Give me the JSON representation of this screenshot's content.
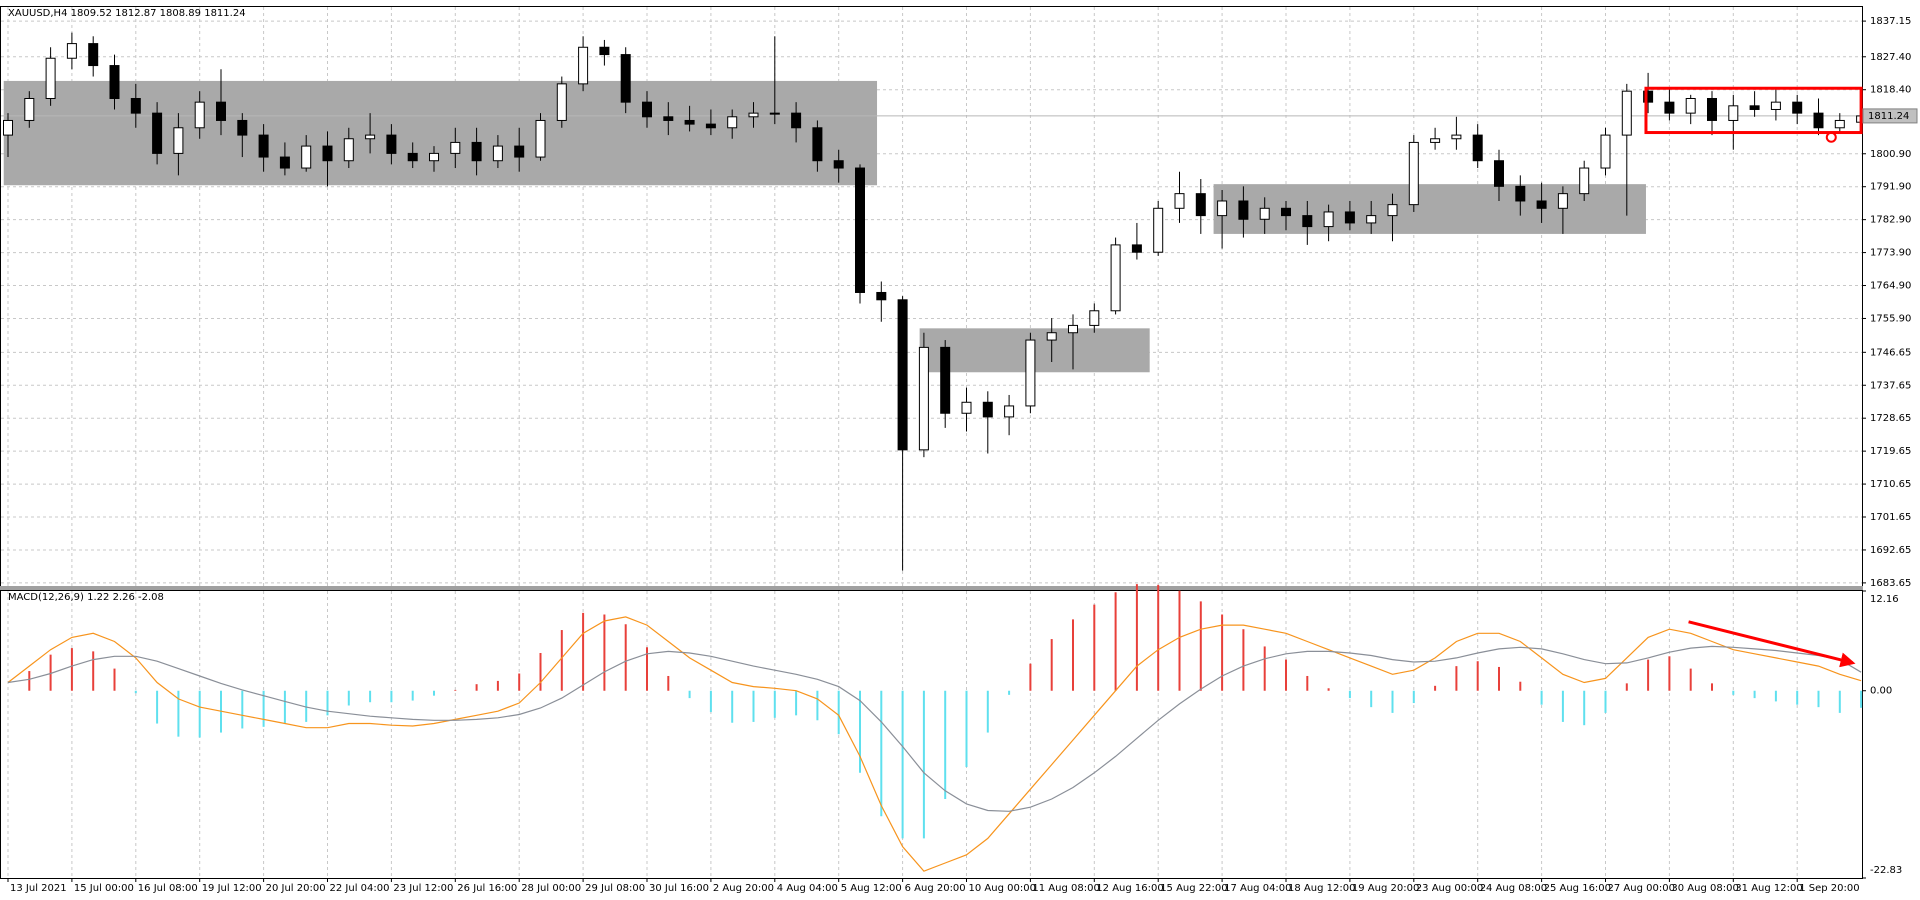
{
  "chart_data": [
    {
      "type": "candlestick",
      "title": "XAUUSD,H4  1809.52 1812.87 1808.89 1811.24",
      "categories": [
        "13 Jul 2021",
        null,
        null,
        "15 Jul 00:00",
        null,
        null,
        "16 Jul 08:00",
        null,
        null,
        "19 Jul 12:00",
        null,
        null,
        "20 Jul 20:00",
        null,
        null,
        "22 Jul 04:00",
        null,
        null,
        "23 Jul 12:00",
        null,
        null,
        "26 Jul 16:00",
        null,
        null,
        "28 Jul 00:00",
        null,
        null,
        "29 Jul 08:00",
        null,
        null,
        "30 Jul 16:00",
        null,
        null,
        "2 Aug 20:00",
        null,
        null,
        "4 Aug 04:00",
        null,
        null,
        "5 Aug 12:00",
        null,
        null,
        "6 Aug 20:00",
        null,
        null,
        "10 Aug 00:00",
        null,
        null,
        "11 Aug 08:00",
        null,
        null,
        "12 Aug 16:00",
        null,
        null,
        "15 Aug 22:00",
        null,
        null,
        "17 Aug 04:00",
        null,
        null,
        "18 Aug 12:00",
        null,
        null,
        "19 Aug 20:00",
        null,
        null,
        "23 Aug 00:00",
        null,
        null,
        "24 Aug 08:00",
        null,
        null,
        "25 Aug 16:00",
        null,
        null,
        "27 Aug 00:00",
        null,
        null,
        "30 Aug 08:00",
        null,
        null,
        "31 Aug 12:00",
        null,
        null,
        "1 Sep 20:00",
        null,
        null,
        null
      ],
      "ohlc": [
        [
          1806,
          1812,
          1800,
          1810
        ],
        [
          1810,
          1818,
          1808,
          1816
        ],
        [
          1816,
          1830,
          1814,
          1827
        ],
        [
          1827,
          1834,
          1824,
          1831
        ],
        [
          1831,
          1833,
          1822,
          1825
        ],
        [
          1825,
          1828,
          1813,
          1816
        ],
        [
          1816,
          1820,
          1808,
          1812
        ],
        [
          1812,
          1815,
          1798,
          1801
        ],
        [
          1801,
          1812,
          1795,
          1808
        ],
        [
          1808,
          1818,
          1805,
          1815
        ],
        [
          1815,
          1824,
          1806,
          1810
        ],
        [
          1810,
          1812,
          1800,
          1806
        ],
        [
          1806,
          1809,
          1796,
          1800
        ],
        [
          1800,
          1804,
          1795,
          1797
        ],
        [
          1797,
          1806,
          1796,
          1803
        ],
        [
          1803,
          1807,
          1792,
          1799
        ],
        [
          1799,
          1808,
          1797,
          1805
        ],
        [
          1805,
          1812,
          1801,
          1806
        ],
        [
          1806,
          1809,
          1798,
          1801
        ],
        [
          1801,
          1804,
          1797,
          1799
        ],
        [
          1799,
          1803,
          1796,
          1801
        ],
        [
          1801,
          1808,
          1797,
          1804
        ],
        [
          1804,
          1808,
          1795,
          1799
        ],
        [
          1799,
          1806,
          1797,
          1803
        ],
        [
          1803,
          1808,
          1796,
          1800
        ],
        [
          1800,
          1812,
          1799,
          1810
        ],
        [
          1810,
          1822,
          1808,
          1820
        ],
        [
          1820,
          1833,
          1818,
          1830
        ],
        [
          1830,
          1832,
          1825,
          1828
        ],
        [
          1828,
          1830,
          1812,
          1815
        ],
        [
          1815,
          1818,
          1808,
          1811
        ],
        [
          1811,
          1815,
          1806,
          1810
        ],
        [
          1810,
          1814,
          1807,
          1809
        ],
        [
          1809,
          1813,
          1806,
          1808
        ],
        [
          1808,
          1813,
          1805,
          1811
        ],
        [
          1811,
          1815,
          1808,
          1812
        ],
        [
          1812,
          1833,
          1809,
          1812
        ],
        [
          1812,
          1815,
          1804,
          1808
        ],
        [
          1808,
          1810,
          1796,
          1799
        ],
        [
          1799,
          1802,
          1793,
          1797
        ],
        [
          1797,
          1798,
          1760,
          1763
        ],
        [
          1763,
          1766,
          1755,
          1761
        ],
        [
          1761,
          1762,
          1687,
          1720
        ],
        [
          1720,
          1752,
          1718,
          1748
        ],
        [
          1748,
          1750,
          1726,
          1730
        ],
        [
          1730,
          1737,
          1725,
          1733
        ],
        [
          1733,
          1736,
          1719,
          1729
        ],
        [
          1729,
          1735,
          1724,
          1732
        ],
        [
          1732,
          1752,
          1730,
          1750
        ],
        [
          1750,
          1756,
          1744,
          1752
        ],
        [
          1752,
          1757,
          1742,
          1754
        ],
        [
          1754,
          1760,
          1752,
          1758
        ],
        [
          1758,
          1778,
          1757,
          1776
        ],
        [
          1776,
          1782,
          1772,
          1774
        ],
        [
          1774,
          1788,
          1773,
          1786
        ],
        [
          1786,
          1796,
          1782,
          1790
        ],
        [
          1790,
          1794,
          1779,
          1784
        ],
        [
          1784,
          1791,
          1775,
          1788
        ],
        [
          1788,
          1792,
          1778,
          1783
        ],
        [
          1783,
          1789,
          1779,
          1786
        ],
        [
          1786,
          1788,
          1780,
          1784
        ],
        [
          1784,
          1788,
          1776,
          1781
        ],
        [
          1781,
          1787,
          1777,
          1785
        ],
        [
          1785,
          1788,
          1780,
          1782
        ],
        [
          1782,
          1788,
          1779,
          1784
        ],
        [
          1784,
          1790,
          1777,
          1787
        ],
        [
          1787,
          1806,
          1785,
          1804
        ],
        [
          1804,
          1808,
          1802,
          1805
        ],
        [
          1805,
          1811,
          1802,
          1806
        ],
        [
          1806,
          1809,
          1797,
          1799
        ],
        [
          1799,
          1802,
          1788,
          1792
        ],
        [
          1792,
          1795,
          1784,
          1788
        ],
        [
          1788,
          1793,
          1782,
          1786
        ],
        [
          1786,
          1792,
          1779,
          1790
        ],
        [
          1790,
          1799,
          1788,
          1797
        ],
        [
          1797,
          1808,
          1795,
          1806
        ],
        [
          1806,
          1820,
          1784,
          1818
        ],
        [
          1818,
          1823,
          1812,
          1815
        ],
        [
          1815,
          1819,
          1810,
          1812
        ],
        [
          1812,
          1817,
          1809,
          1816
        ],
        [
          1816,
          1818,
          1806,
          1810
        ],
        [
          1810,
          1817,
          1802,
          1814
        ],
        [
          1814,
          1818,
          1811,
          1813
        ],
        [
          1813,
          1819,
          1810,
          1815
        ],
        [
          1815,
          1817,
          1809,
          1812
        ],
        [
          1812,
          1816,
          1806,
          1808
        ],
        [
          1808,
          1812,
          1807,
          1810
        ],
        [
          1809.52,
          1812.87,
          1808.89,
          1811.24
        ]
      ],
      "up_color": "#ffffff",
      "down_color": "#000000",
      "ylim": [
        1682.8,
        1841
      ],
      "yticks": [
        1837.15,
        {
          "value": 1827.4,
          "label": "1827.40"
        },
        {
          "value": 1818.4,
          "label": "1818.40"
        },
        {
          "value": 1800.9,
          "label": "1800.90"
        },
        {
          "value": 1791.9,
          "label": "1791.90"
        },
        {
          "value": 1782.9,
          "label": "1782.90"
        },
        {
          "value": 1773.9,
          "label": "1773.90"
        },
        {
          "value": 1764.9,
          "label": "1764.90"
        },
        {
          "value": 1755.9,
          "label": "1755.90"
        },
        1746.65,
        1737.65,
        1728.65,
        1719.65,
        1710.65,
        1701.65,
        1692.65,
        1683.65
      ],
      "grid": true,
      "zones": [
        {
          "start": -0.2,
          "end": 40.8,
          "low": 1792.3,
          "high": 1820.8,
          "color": "#a9a9a9"
        },
        {
          "start": 42.8,
          "end": 53.6,
          "low": 1741.2,
          "high": 1753.2,
          "color": "#a9a9a9"
        },
        {
          "start": 56.6,
          "end": 76.9,
          "low": 1779.0,
          "high": 1792.6,
          "color": "#a9a9a9"
        }
      ],
      "highlight": {
        "start": 76.9,
        "end": 87,
        "low": 1806.7,
        "high": 1818.8,
        "color": "#ff0000"
      },
      "marker": {
        "x": 85.6,
        "y": 1805.4,
        "color": "#ff0000"
      }
    },
    {
      "type": "macd",
      "title": "MACD(12,26,9) 1.22 2.26 -2.08",
      "histogram": {
        "pos_color": "#e8403a",
        "neg_color": "#5fe0ee",
        "values": [
          0,
          2.4,
          4.4,
          5.2,
          4.8,
          2.7,
          -0.3,
          -4,
          -5.6,
          -5.7,
          -5.1,
          -4.6,
          -4.4,
          -4,
          -3.8,
          -3,
          -1.8,
          -1.4,
          -1.4,
          -1.2,
          -0.6,
          0.1,
          0.8,
          1.2,
          2.1,
          4.6,
          7.4,
          9.5,
          9.3,
          8.1,
          5.3,
          1.8,
          -0.9,
          -2.6,
          -3.9,
          -3.8,
          -3.3,
          -3,
          -3.6,
          -5.3,
          -10,
          -15.3,
          -18,
          -18,
          -13.2,
          -9.3,
          -5.1,
          -0.5,
          3.3,
          6.3,
          8.7,
          10.5,
          12,
          13,
          12.9,
          12.2,
          10.9,
          9.3,
          7.5,
          5.4,
          3.8,
          1.8,
          0.3,
          -0.9,
          -2,
          -2.7,
          -1.5,
          0.6,
          3,
          3.6,
          2.9,
          1.1,
          -1.7,
          -3.8,
          -4.2,
          -2.7,
          0.9,
          3.8,
          4.2,
          2.7,
          0.9,
          -0.5,
          -0.9,
          -1.3,
          -1.7,
          -2,
          -2.7,
          -2.08
        ]
      },
      "series": [
        {
          "color": "#f7941d",
          "values": [
            1,
            3,
            5,
            6.5,
            7,
            6,
            4,
            1,
            -1,
            -2,
            -2.5,
            -3,
            -3.5,
            -4,
            -4.5,
            -4.5,
            -4,
            -4,
            -4.2,
            -4.3,
            -4,
            -3.5,
            -3,
            -2.5,
            -1.5,
            1,
            4,
            7,
            8.5,
            9,
            8,
            6,
            4,
            2.5,
            1,
            0.5,
            0.3,
            0,
            -1,
            -3,
            -8,
            -14,
            -19,
            -22,
            -21,
            -20,
            -18,
            -15,
            -12,
            -9,
            -6,
            -3,
            0,
            3,
            5,
            6.5,
            7.5,
            8,
            8,
            7.5,
            7,
            6,
            5,
            4,
            3,
            2,
            2.5,
            4,
            6,
            7,
            7,
            6,
            4,
            2,
            1,
            1.5,
            4,
            6.5,
            7.5,
            7,
            6,
            5,
            4.5,
            4,
            3.5,
            3,
            2,
            1.22
          ]
        },
        {
          "color": "#8a8f98",
          "values": [
            1,
            1.4,
            2.1,
            3,
            3.8,
            4.2,
            4.2,
            3.6,
            2.7,
            1.8,
            0.9,
            0.1,
            -0.6,
            -1.3,
            -2,
            -2.5,
            -2.8,
            -3.1,
            -3.3,
            -3.5,
            -3.6,
            -3.6,
            -3.5,
            -3.3,
            -2.9,
            -2.1,
            -0.9,
            0.7,
            2.3,
            3.6,
            4.5,
            4.8,
            4.6,
            4.2,
            3.6,
            3,
            2.5,
            2,
            1.4,
            0.5,
            -1.2,
            -3.8,
            -6.8,
            -10,
            -12.2,
            -13.8,
            -14.6,
            -14.7,
            -14.2,
            -13.2,
            -11.8,
            -10,
            -8,
            -5.8,
            -3.6,
            -1.6,
            0.2,
            1.8,
            3,
            3.9,
            4.5,
            4.8,
            4.8,
            4.6,
            4.3,
            3.8,
            3.5,
            3.6,
            4,
            4.6,
            5.1,
            5.3,
            5.1,
            4.5,
            3.8,
            3.3,
            3.4,
            4,
            4.7,
            5.2,
            5.4,
            5.3,
            5.1,
            4.9,
            4.6,
            4.3,
            3.8,
            2.26
          ]
        }
      ],
      "ylim": [
        -22.83,
        12.16
      ],
      "yticks": [
        12.16,
        {
          "value": 0,
          "label": "0.00"
        },
        -22.83
      ],
      "arrow": {
        "from": [
          78.9,
          8.4
        ],
        "to": [
          86.6,
          3.4
        ],
        "color": "#ff0000"
      }
    }
  ]
}
